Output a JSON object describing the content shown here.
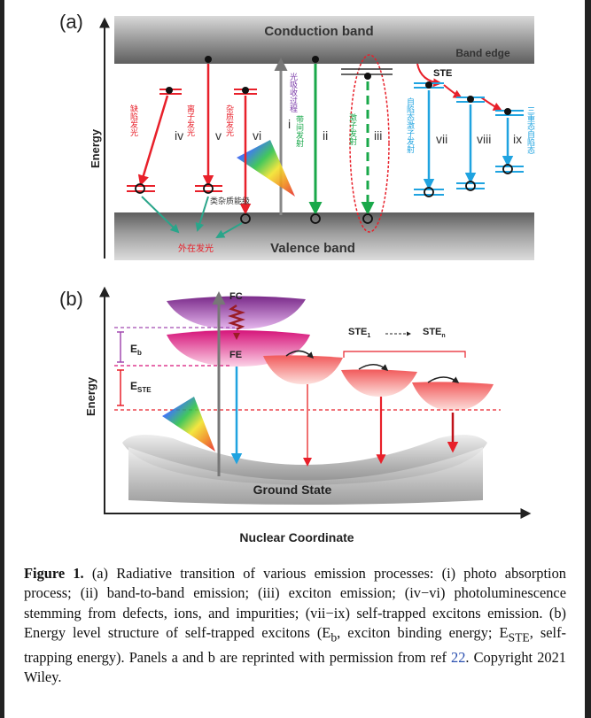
{
  "panel_a": {
    "label": "(a)",
    "energy_label": "Energy",
    "conduction_band": "Conduction band",
    "band_edge": "Band edge",
    "valence_band": "Valence band",
    "ste": "STE",
    "roman": {
      "i": "i",
      "ii": "ii",
      "iii": "iii",
      "iv": "iv",
      "v": "v",
      "vi": "vi",
      "vii": "vii",
      "viii": "viii",
      "ix": "ix"
    },
    "cn_defect": "缺陷发光",
    "cn_ion": "离子发光",
    "cn_impurity": "杂质发光",
    "cn_absorb": "光吸收过程",
    "cn_band2band": "带间发射",
    "cn_exciton": "激子发射",
    "cn_self_trapped": "自陷态激子发射",
    "cn_triplet": "三重态自陷态",
    "cn_impurity_level": "类杂质能级",
    "cn_extrinsic": "外在发光",
    "colors": {
      "red": "#e8202a",
      "green": "#19a84a",
      "blue": "#1fa3e0",
      "band_gray": "#8a8a8a"
    }
  },
  "panel_b": {
    "label": "(b)",
    "energy_label": "Energy",
    "fc": "FC",
    "fe": "FE",
    "eb": "E",
    "eb_sub": "b",
    "este": "E",
    "este_sub": "STE",
    "ste1": "STE",
    "ste1_sub": "1",
    "sten": "STE",
    "sten_sub": "n",
    "ground_state": "Ground State",
    "x_label": "Nuclear Coordinate"
  },
  "caption": {
    "figure": "Figure 1.",
    "text1": " (a) Radiative transition of various emission processes: (i) photo absorption process; (ii) band-to-band emission; (iii) exciton emission; (iv−vi) photoluminescence stemming from defects, ions, and impurities; (vii−ix) self-trapped excitons emission. (b) Energy level structure of self-trapped excitons (E",
    "eb_sub": "b",
    "text2": ", exciton binding energy; E",
    "este_sub": "STE",
    "text3": ", self-trapping energy). Panels a and b are reprinted with permission from ref ",
    "ref": "22",
    "text4": ". Copyright 2021 Wiley."
  }
}
